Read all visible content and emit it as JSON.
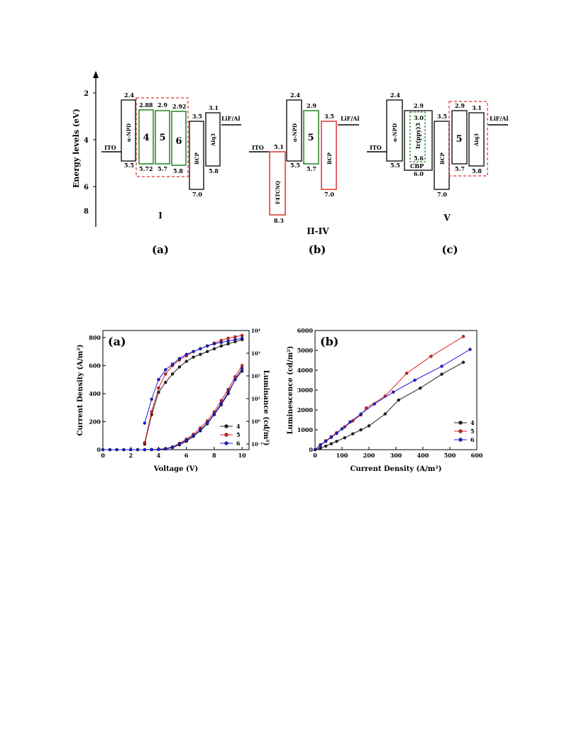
{
  "energy_diagram": {
    "y_axis_label": "Energy levels (eV)",
    "y_ticks": [
      "2",
      "4",
      "6",
      "8"
    ],
    "panel_a": {
      "label": "(a)",
      "device": "I",
      "ito": "ITO",
      "cathode": "LiF/Al",
      "npd": {
        "label": "α-NPD",
        "top": "2.4",
        "bottom": "5.5"
      },
      "emitters": [
        {
          "label": "4",
          "top": "2.88",
          "bottom": "5.72"
        },
        {
          "label": "5",
          "top": "2.9",
          "bottom": "5.7"
        },
        {
          "label": "6",
          "top": "2.92",
          "bottom": "5.8"
        }
      ],
      "bcp": {
        "label": "BCP",
        "top": "3.5",
        "bottom": "7.0"
      },
      "alq": {
        "label": "Alq3",
        "top": "3.1",
        "bottom": "5.8"
      }
    },
    "panel_b": {
      "label": "(b)",
      "device": "II-IV",
      "ito": "ITO",
      "cathode": "LiF/Al",
      "f4": {
        "label": "F4TCNQ",
        "top": "5.1",
        "bottom": "8.3"
      },
      "npd": {
        "label": "α-NPD",
        "top": "2.4",
        "bottom": "5.5"
      },
      "emitter": {
        "label": "5",
        "top": "2.9",
        "bottom": "5.7"
      },
      "bcp": {
        "label": "BCP",
        "top": "3.5",
        "bottom": "7.0"
      }
    },
    "panel_c": {
      "label": "(c)",
      "device": "V",
      "ito": "ITO",
      "cathode": "LiF/Al",
      "npd": {
        "label": "α-NPD",
        "top": "2.4",
        "bottom": "5.5"
      },
      "cbp": {
        "label": "CBP",
        "top": "2.9",
        "bottom": "6.0"
      },
      "irppy": {
        "label": "Ir(ppy)3",
        "top": "3.0",
        "bottom": "5.6"
      },
      "bcp": {
        "label": "BCP",
        "top": "3.5",
        "bottom": "7.0"
      },
      "emitter": {
        "label": "5",
        "top": "2.9",
        "bottom": "5.7"
      },
      "alq": {
        "label": "Alq3",
        "top": "3.1",
        "bottom": "5.8"
      }
    }
  },
  "colors": {
    "s4": "#222222",
    "s5": "#e02020",
    "s6": "#2020e0",
    "green": "#2e8b2e",
    "red_dash": "#e03030",
    "black": "#000000"
  },
  "chart_data": [
    {
      "type": "line",
      "panel": "(a)",
      "xlabel": "Voltage (V)",
      "ylabel": "Current Density (A/m²)",
      "y2label": "Luminance (cd/m²)",
      "xlim": [
        0,
        10.5
      ],
      "ylim": [
        0,
        850
      ],
      "x_ticks": [
        "0",
        "2",
        "4",
        "6",
        "8",
        "10"
      ],
      "y_ticks": [
        "0",
        "200",
        "400",
        "600",
        "800"
      ],
      "y2_ticks": [
        "10⁻¹",
        "10⁰",
        "10¹",
        "10²",
        "10³",
        "10⁴"
      ],
      "legend": [
        "4",
        "5",
        "6"
      ],
      "legend_position": "bottom-right",
      "current_density": [
        {
          "name": "4",
          "x": [
            0,
            0.5,
            1,
            1.5,
            2,
            2.5,
            3,
            3.5,
            4,
            4.5,
            5,
            5.5,
            6,
            6.5,
            7,
            7.5,
            8,
            8.5,
            9,
            9.5,
            10
          ],
          "y": [
            0,
            0,
            0,
            0,
            0,
            0,
            0,
            1,
            2,
            5,
            15,
            35,
            60,
            95,
            135,
            185,
            250,
            320,
            400,
            500,
            560
          ]
        },
        {
          "name": "5",
          "x": [
            0,
            0.5,
            1,
            1.5,
            2,
            2.5,
            3,
            3.5,
            4,
            4.5,
            5,
            5.5,
            6,
            6.5,
            7,
            7.5,
            8,
            8.5,
            9,
            9.5,
            10
          ],
          "y": [
            0,
            0,
            0,
            0,
            0,
            0,
            0,
            1,
            3,
            8,
            20,
            45,
            75,
            110,
            155,
            205,
            270,
            350,
            430,
            520,
            600
          ]
        },
        {
          "name": "6",
          "x": [
            0,
            0.5,
            1,
            1.5,
            2,
            2.5,
            3,
            3.5,
            4,
            4.5,
            5,
            5.5,
            6,
            6.5,
            7,
            7.5,
            8,
            8.5,
            9,
            9.5,
            10
          ],
          "y": [
            0,
            0,
            0,
            0,
            0,
            0,
            0,
            1,
            2,
            6,
            18,
            40,
            68,
            100,
            140,
            190,
            255,
            330,
            410,
            500,
            580
          ]
        }
      ],
      "luminance": [
        {
          "name": "4",
          "x": [
            3,
            3.5,
            4,
            4.5,
            5,
            5.5,
            6,
            6.5,
            7,
            7.5,
            8,
            8.5,
            9,
            9.5,
            10
          ],
          "y": [
            40,
            250,
            410,
            480,
            540,
            590,
            630,
            660,
            680,
            700,
            720,
            740,
            755,
            770,
            785
          ]
        },
        {
          "name": "5",
          "x": [
            3,
            3.5,
            4,
            4.5,
            5,
            5.5,
            6,
            6.5,
            7,
            7.5,
            8,
            8.5,
            9,
            9.5,
            10
          ],
          "y": [
            50,
            270,
            440,
            540,
            600,
            640,
            670,
            700,
            720,
            740,
            760,
            780,
            795,
            805,
            815
          ]
        },
        {
          "name": "6",
          "x": [
            3,
            3.5,
            4,
            4.5,
            5,
            5.5,
            6,
            6.5,
            7,
            7.5,
            8,
            8.5,
            9,
            9.5,
            10
          ],
          "y": [
            190,
            360,
            500,
            570,
            610,
            650,
            680,
            700,
            720,
            740,
            755,
            765,
            775,
            785,
            795
          ]
        }
      ]
    },
    {
      "type": "line",
      "panel": "(b)",
      "xlabel": "Current Density (A/m²)",
      "ylabel": "Luminescence (cd/m²)",
      "xlim": [
        0,
        600
      ],
      "ylim": [
        0,
        6000
      ],
      "x_ticks": [
        "0",
        "100",
        "200",
        "300",
        "400",
        "500",
        "600"
      ],
      "y_ticks": [
        "0",
        "1000",
        "2000",
        "3000",
        "4000",
        "5000",
        "6000"
      ],
      "legend": [
        "4",
        "5",
        "6"
      ],
      "legend_position": "bottom-right",
      "series": [
        {
          "name": "4",
          "x": [
            0,
            20,
            40,
            60,
            80,
            110,
            140,
            170,
            200,
            260,
            310,
            390,
            470,
            550
          ],
          "y": [
            0,
            80,
            180,
            300,
            420,
            600,
            800,
            1000,
            1200,
            1800,
            2500,
            3100,
            3800,
            4400
          ]
        },
        {
          "name": "5",
          "x": [
            0,
            20,
            40,
            60,
            80,
            110,
            140,
            170,
            190,
            260,
            340,
            430,
            550
          ],
          "y": [
            0,
            250,
            450,
            650,
            850,
            1150,
            1450,
            1750,
            2100,
            2700,
            3850,
            4700,
            5700
          ]
        },
        {
          "name": "6",
          "x": [
            0,
            20,
            40,
            60,
            80,
            100,
            130,
            170,
            220,
            290,
            370,
            470,
            575
          ],
          "y": [
            0,
            220,
            420,
            620,
            820,
            1050,
            1400,
            1800,
            2300,
            2900,
            3500,
            4200,
            5050
          ]
        }
      ]
    }
  ]
}
